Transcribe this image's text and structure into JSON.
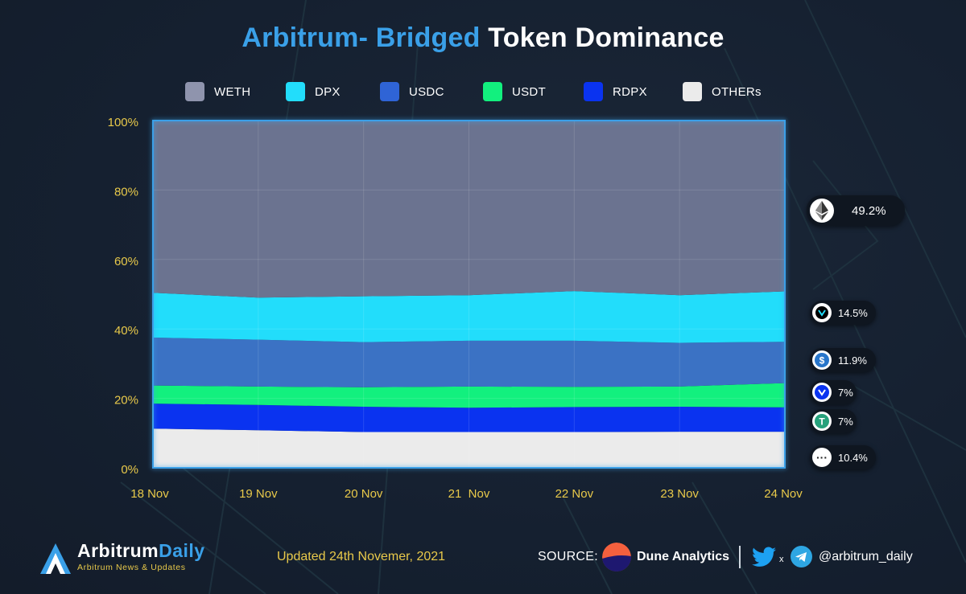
{
  "header": {
    "title_accent": "Arbitrum- Bridged",
    "title_rest": "Token Dominance"
  },
  "legend": [
    {
      "label": "WETH",
      "color": "#8f94ad"
    },
    {
      "label": "DPX",
      "color": "#22ddfb"
    },
    {
      "label": "USDC",
      "color": "#2f64d6"
    },
    {
      "label": "USDT",
      "color": "#12f07e"
    },
    {
      "label": "RDPX",
      "color": "#0a33f0"
    },
    {
      "label": "OTHERs",
      "color": "#ebebeb"
    }
  ],
  "chart_data": {
    "type": "area",
    "stacked": true,
    "title": "Arbitrum- Bridged Token Dominance",
    "x": [
      "18 Nov",
      "19 Nov",
      "20 Nov",
      "21  Nov",
      "22 Nov",
      "23 Nov",
      "24 Nov"
    ],
    "y_ticks": [
      "100%",
      "80%",
      "60%",
      "40%",
      "20%",
      "0%"
    ],
    "ylim": [
      0,
      100
    ],
    "grid": true,
    "legend_position": "top",
    "series": [
      {
        "name": "OTHERs",
        "color": "#ebebeb",
        "values": [
          11.3,
          10.8,
          10.3,
          10.3,
          10.3,
          10.4,
          10.4
        ]
      },
      {
        "name": "RDPX",
        "color": "#0a33f0",
        "values": [
          7.2,
          7.3,
          7.3,
          7.0,
          7.2,
          7.2,
          7.0
        ]
      },
      {
        "name": "USDT",
        "color": "#12f07e",
        "values": [
          5.2,
          5.3,
          5.6,
          6.1,
          5.8,
          5.8,
          7.0
        ]
      },
      {
        "name": "USDC",
        "color": "#3b72c4",
        "values": [
          13.8,
          13.5,
          13.0,
          13.2,
          13.3,
          12.6,
          11.9
        ]
      },
      {
        "name": "DPX",
        "color": "#22ddfb",
        "values": [
          12.9,
          12.1,
          13.2,
          13.1,
          14.3,
          13.7,
          14.5
        ]
      },
      {
        "name": "WETH",
        "color": "#6b7390",
        "values": [
          49.6,
          51.0,
          50.6,
          50.3,
          49.1,
          50.3,
          49.2
        ]
      }
    ]
  },
  "callouts": [
    {
      "token": "WETH",
      "icon": "ethereum-icon",
      "value": "49.2%"
    },
    {
      "token": "DPX",
      "icon": "dopex-icon",
      "value": "14.5%"
    },
    {
      "token": "USDC",
      "icon": "usdc-icon",
      "value": "11.9%"
    },
    {
      "token": "RDPX",
      "icon": "rdpx-icon",
      "value": "7%"
    },
    {
      "token": "USDT",
      "icon": "tether-icon",
      "value": "7%"
    },
    {
      "token": "OTHERs",
      "icon": "more-icon",
      "value": "10.4%"
    }
  ],
  "footer": {
    "brand_main": "Arbitrum",
    "brand_accent": "Daily",
    "brand_sub": "Arbitrum News & Updates",
    "updated": "Updated 24th Novemer, 2021",
    "source_label": "SOURCE:",
    "source_name": "Dune Analytics",
    "x_sep": "x",
    "handle": "@arbitrum_daily"
  }
}
